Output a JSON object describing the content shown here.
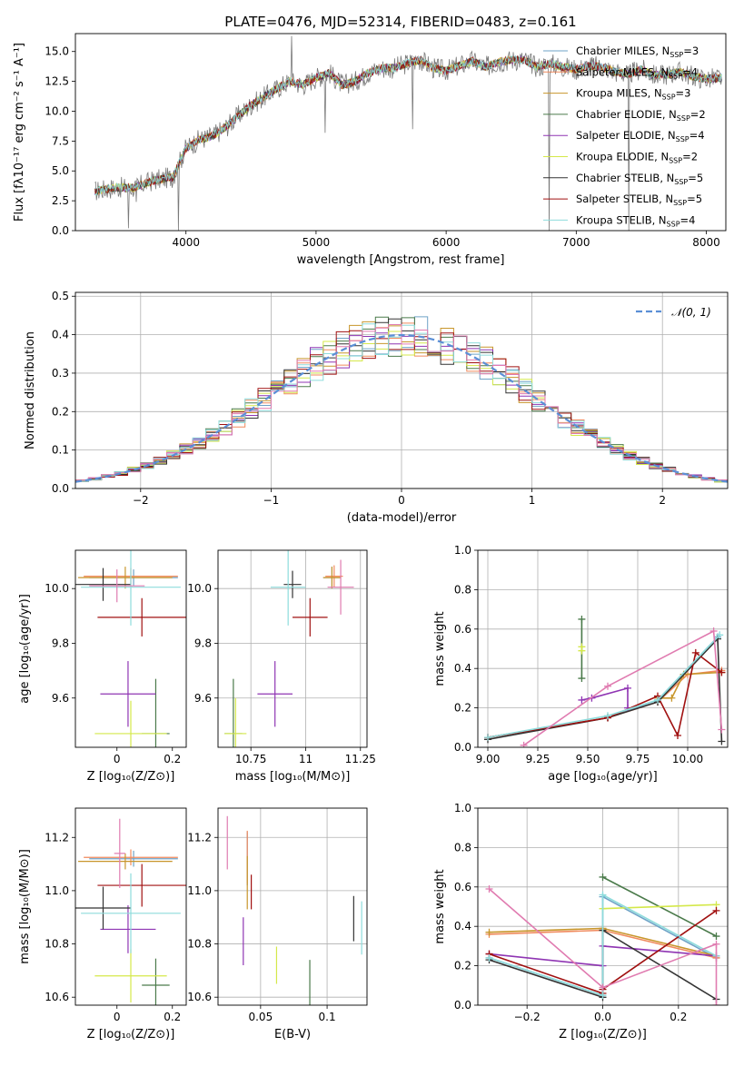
{
  "figure": {
    "title": "PLATE=0476, MJD=52314, FIBERID=0483, z=0.161"
  },
  "colors": {
    "Chabrier MILES": "#6fa3c7",
    "Salpeter MILES": "#f08a5d",
    "Kroupa MILES": "#c8962c",
    "Chabrier ELODIE": "#4a7a4a",
    "Salpeter ELODIE": "#8f35b3",
    "Kroupa ELODIE": "#d4e84a",
    "Chabrier STELIB": "#333333",
    "Salpeter STELIB": "#a01010",
    "Kroupa STELIB": "#8edcdc",
    "extra_pink": "#e07bb0",
    "normal_curve": "#5b8fd6"
  },
  "chart_data": [
    {
      "type": "line",
      "id": "spectrum",
      "title": "PLATE=0476, MJD=52314, FIBERID=0483, z=0.161",
      "xlabel": "wavelength [Angstrom, rest frame]",
      "ylabel": "Flux [fλ10⁻¹⁷ erg cm⁻² s⁻¹ A⁻¹]",
      "xlim": [
        3150,
        8150
      ],
      "ylim": [
        0,
        16.5
      ],
      "xticks": [
        4000,
        5000,
        6000,
        7000,
        8000
      ],
      "yticks": [
        0.0,
        2.5,
        5.0,
        7.5,
        10.0,
        12.5,
        15.0
      ],
      "grid": false,
      "legend_position": "top-right",
      "legend": [
        {
          "label": "Chabrier MILES, N",
          "sub": "SSP",
          "tail": "=3",
          "color": "#6fa3c7"
        },
        {
          "label": "Salpeter MILES, N",
          "sub": "SSP",
          "tail": "=4",
          "color": "#f08a5d"
        },
        {
          "label": "Kroupa MILES, N",
          "sub": "SSP",
          "tail": "=3",
          "color": "#c8962c"
        },
        {
          "label": "Chabrier ELODIE, N",
          "sub": "SSP",
          "tail": "=2",
          "color": "#4a7a4a"
        },
        {
          "label": "Salpeter ELODIE, N",
          "sub": "SSP",
          "tail": "=4",
          "color": "#8f35b3"
        },
        {
          "label": "Kroupa ELODIE, N",
          "sub": "SSP",
          "tail": "=2",
          "color": "#d4e84a"
        },
        {
          "label": "Chabrier STELIB, N",
          "sub": "SSP",
          "tail": "=5",
          "color": "#333333"
        },
        {
          "label": "Salpeter STELIB, N",
          "sub": "SSP",
          "tail": "=5",
          "color": "#a01010"
        },
        {
          "label": "Kroupa STELIB, N",
          "sub": "SSP",
          "tail": "=4",
          "color": "#8edcdc"
        }
      ],
      "continuum": [
        [
          3300,
          3.3
        ],
        [
          3450,
          3.6
        ],
        [
          3600,
          3.6
        ],
        [
          3750,
          4.2
        ],
        [
          3900,
          4.5
        ],
        [
          4000,
          6.9
        ],
        [
          4100,
          7.6
        ],
        [
          4200,
          7.9
        ],
        [
          4300,
          8.6
        ],
        [
          4400,
          9.6
        ],
        [
          4500,
          10.5
        ],
        [
          4600,
          11.2
        ],
        [
          4700,
          11.9
        ],
        [
          4800,
          12.5
        ],
        [
          4900,
          12.2
        ],
        [
          5000,
          12.8
        ],
        [
          5100,
          13.2
        ],
        [
          5200,
          12.2
        ],
        [
          5300,
          12.5
        ],
        [
          5400,
          13.2
        ],
        [
          5500,
          13.6
        ],
        [
          5600,
          13.6
        ],
        [
          5700,
          14.0
        ],
        [
          5800,
          14.3
        ],
        [
          5900,
          13.6
        ],
        [
          6000,
          13.4
        ],
        [
          6100,
          13.8
        ],
        [
          6200,
          14.2
        ],
        [
          6300,
          13.7
        ],
        [
          6400,
          14.1
        ],
        [
          6500,
          14.3
        ],
        [
          6600,
          14.3
        ],
        [
          6700,
          13.7
        ],
        [
          6800,
          14.0
        ],
        [
          6900,
          13.7
        ],
        [
          7000,
          13.5
        ],
        [
          7100,
          13.8
        ],
        [
          7200,
          13.7
        ],
        [
          7300,
          13.3
        ],
        [
          7400,
          13.1
        ],
        [
          7500,
          13.5
        ],
        [
          7600,
          13.0
        ],
        [
          7700,
          13.1
        ],
        [
          7800,
          13.3
        ],
        [
          7900,
          12.9
        ],
        [
          8000,
          12.7
        ],
        [
          8100,
          12.8
        ]
      ],
      "spikes": [
        [
          3560,
          0.2
        ],
        [
          3620,
          2.4
        ],
        [
          3940,
          0.0
        ],
        [
          4810,
          16.3
        ],
        [
          5070,
          8.2
        ],
        [
          5740,
          8.5
        ],
        [
          6790,
          0.0
        ],
        [
          7405,
          0.0
        ]
      ]
    },
    {
      "type": "line",
      "id": "residual_histogram",
      "xlabel": "(data-model)/error",
      "ylabel": "Normed distribution",
      "xlim": [
        -2.5,
        2.5
      ],
      "ylim": [
        0,
        0.51
      ],
      "xticks": [
        -2,
        -1,
        0,
        1,
        2
      ],
      "xtick_labels": [
        "−2",
        "−1",
        "0",
        "1",
        "2"
      ],
      "yticks": [
        0.0,
        0.1,
        0.2,
        0.3,
        0.4,
        0.5
      ],
      "grid": true,
      "legend_position": "top-right",
      "legend": [
        {
          "label": "𝒩(0, 1)",
          "color": "#5b8fd6",
          "style": "dashed"
        }
      ],
      "series_colors": [
        "#6fa3c7",
        "#f08a5d",
        "#c8962c",
        "#4a7a4a",
        "#8f35b3",
        "#d4e84a",
        "#333333",
        "#a01010",
        "#8edcdc",
        "#e07bb0"
      ],
      "bins": {
        "start": -2.5,
        "width": 0.1,
        "count": 50
      }
    },
    {
      "type": "scatter",
      "id": "age_vs_Z",
      "xlabel": "Z [log₁₀(Z/Z⊙)]",
      "ylabel": "age  [log₁₀(age/yr)]",
      "xlim": [
        -0.15,
        0.25
      ],
      "ylim": [
        9.42,
        10.14
      ],
      "xticks": [
        0.0,
        0.2
      ],
      "yticks": [
        9.6,
        9.8,
        10.0
      ],
      "grid": false,
      "points": [
        {
          "x": 0.06,
          "xerr": 0.16,
          "y": 10.04,
          "yerr": 0.03,
          "color": "#6fa3c7"
        },
        {
          "x": 0.05,
          "xerr": 0.17,
          "y": 10.045,
          "yerr": 0.03,
          "color": "#f08a5d"
        },
        {
          "x": 0.03,
          "xerr": 0.17,
          "y": 10.04,
          "yerr": 0.04,
          "color": "#c8962c"
        },
        {
          "x": 0.14,
          "xerr": 0.05,
          "y": 9.47,
          "yerr": 0.2,
          "color": "#4a7a4a"
        },
        {
          "x": 0.04,
          "xerr": 0.1,
          "y": 9.615,
          "yerr": 0.12,
          "color": "#8f35b3"
        },
        {
          "x": 0.05,
          "xerr": 0.13,
          "y": 9.47,
          "yerr": 0.12,
          "color": "#d4e84a"
        },
        {
          "x": -0.05,
          "xerr": 0.1,
          "y": 10.015,
          "yerr": 0.06,
          "color": "#333333"
        },
        {
          "x": 0.09,
          "xerr": 0.16,
          "y": 9.895,
          "yerr": 0.07,
          "color": "#a01010"
        },
        {
          "x": 0.05,
          "xerr": 0.18,
          "y": 10.005,
          "yerr": 0.14,
          "color": "#8edcdc"
        },
        {
          "x": 0.0,
          "xerr": 0.1,
          "y": 10.01,
          "yerr": 0.06,
          "color": "#e07bb0"
        }
      ]
    },
    {
      "type": "scatter",
      "id": "age_vs_mass",
      "xlabel": "mass [log₁₀(M/M⊙)]",
      "xlim": [
        10.6,
        11.28
      ],
      "ylim": [
        9.42,
        10.14
      ],
      "xticks": [
        10.75,
        11.0,
        11.25
      ],
      "yticks": [
        9.6,
        9.8,
        10.0
      ],
      "grid": true,
      "points": [
        {
          "x": 11.12,
          "xerr": 0.04,
          "y": 10.04,
          "yerr": 0.04,
          "color": "#6fa3c7"
        },
        {
          "x": 11.13,
          "xerr": 0.04,
          "y": 10.045,
          "yerr": 0.04,
          "color": "#f08a5d"
        },
        {
          "x": 11.12,
          "xerr": 0.04,
          "y": 10.04,
          "yerr": 0.04,
          "color": "#c8962c"
        },
        {
          "x": 10.67,
          "xerr": 0.04,
          "y": 9.47,
          "yerr": 0.2,
          "color": "#4a7a4a"
        },
        {
          "x": 10.86,
          "xerr": 0.08,
          "y": 9.615,
          "yerr": 0.12,
          "color": "#8f35b3"
        },
        {
          "x": 10.68,
          "xerr": 0.05,
          "y": 9.47,
          "yerr": 0.13,
          "color": "#d4e84a"
        },
        {
          "x": 10.94,
          "xerr": 0.04,
          "y": 10.015,
          "yerr": 0.05,
          "color": "#333333"
        },
        {
          "x": 11.02,
          "xerr": 0.08,
          "y": 9.895,
          "yerr": 0.07,
          "color": "#a01010"
        },
        {
          "x": 10.92,
          "xerr": 0.08,
          "y": 10.005,
          "yerr": 0.14,
          "color": "#8edcdc"
        },
        {
          "x": 11.16,
          "xerr": 0.06,
          "y": 10.005,
          "yerr": 0.1,
          "color": "#e07bb0"
        }
      ]
    },
    {
      "type": "line",
      "id": "mass_weight_vs_age",
      "xlabel": "age  [log₁₀(age/yr)]",
      "ylabel": "mass weight",
      "xlim": [
        8.95,
        10.2
      ],
      "ylim": [
        0,
        1.0
      ],
      "xticks": [
        9.0,
        9.25,
        9.5,
        9.75,
        10.0
      ],
      "xtick_labels": [
        "9.00",
        "9.25",
        "9.50",
        "9.75",
        "10.00"
      ],
      "yticks": [
        0.0,
        0.2,
        0.4,
        0.6,
        0.8,
        1.0
      ],
      "grid": true,
      "series": [
        {
          "color": "#6fa3c7",
          "x": [
            9.0,
            9.6,
            9.85,
            10.15
          ],
          "y": [
            0.05,
            0.15,
            0.24,
            0.56
          ]
        },
        {
          "color": "#f08a5d",
          "x": [
            9.0,
            9.6,
            9.85,
            10.0,
            10.17
          ],
          "y": [
            0.05,
            0.15,
            0.23,
            0.37,
            0.39
          ]
        },
        {
          "color": "#c8962c",
          "x": [
            9.85,
            9.92,
            9.98,
            10.17
          ],
          "y": [
            0.25,
            0.25,
            0.37,
            0.38
          ]
        },
        {
          "color": "#4a7a4a",
          "x": [
            9.47,
            9.47
          ],
          "y": [
            0.35,
            0.65
          ]
        },
        {
          "color": "#8f35b3",
          "x": [
            9.47,
            9.52,
            9.7,
            9.7
          ],
          "y": [
            0.24,
            0.25,
            0.3,
            0.2
          ]
        },
        {
          "color": "#d4e84a",
          "x": [
            9.47,
            9.47
          ],
          "y": [
            0.49,
            0.51
          ]
        },
        {
          "color": "#333333",
          "x": [
            9.0,
            9.6,
            9.85,
            10.15,
            10.17
          ],
          "y": [
            0.04,
            0.15,
            0.23,
            0.55,
            0.03
          ]
        },
        {
          "color": "#a01010",
          "x": [
            9.0,
            9.6,
            9.85,
            9.95,
            10.04,
            10.17
          ],
          "y": [
            0.05,
            0.15,
            0.26,
            0.06,
            0.48,
            0.38
          ]
        },
        {
          "color": "#8edcdc",
          "x": [
            9.0,
            9.6,
            9.85,
            10.16
          ],
          "y": [
            0.05,
            0.16,
            0.24,
            0.57
          ]
        },
        {
          "color": "#e07bb0",
          "x": [
            9.18,
            9.6,
            10.13,
            10.17
          ],
          "y": [
            0.01,
            0.31,
            0.59,
            0.09
          ]
        }
      ]
    },
    {
      "type": "scatter",
      "id": "mass_vs_Z",
      "xlabel": "Z [log₁₀(Z/Z⊙)]",
      "ylabel": "mass [log₁₀(M/M⊙)]",
      "xlim": [
        -0.15,
        0.25
      ],
      "ylim": [
        10.57,
        11.31
      ],
      "xticks": [
        0.0,
        0.2
      ],
      "yticks": [
        10.6,
        10.8,
        11.0,
        11.2
      ],
      "grid": false,
      "points": [
        {
          "x": 0.06,
          "xerr": 0.16,
          "y": 11.12,
          "yerr": 0.03,
          "color": "#6fa3c7"
        },
        {
          "x": 0.05,
          "xerr": 0.17,
          "y": 11.125,
          "yerr": 0.03,
          "color": "#f08a5d"
        },
        {
          "x": 0.03,
          "xerr": 0.17,
          "y": 11.11,
          "yerr": 0.03,
          "color": "#c8962c"
        },
        {
          "x": 0.14,
          "xerr": 0.05,
          "y": 10.645,
          "yerr": 0.1,
          "color": "#4a7a4a"
        },
        {
          "x": 0.04,
          "xerr": 0.1,
          "y": 10.855,
          "yerr": 0.09,
          "color": "#8f35b3"
        },
        {
          "x": 0.05,
          "xerr": 0.13,
          "y": 10.68,
          "yerr": 0.1,
          "color": "#d4e84a"
        },
        {
          "x": -0.05,
          "xerr": 0.1,
          "y": 10.935,
          "yerr": 0.08,
          "color": "#333333"
        },
        {
          "x": 0.09,
          "xerr": 0.16,
          "y": 11.02,
          "yerr": 0.08,
          "color": "#a01010"
        },
        {
          "x": 0.05,
          "xerr": 0.18,
          "y": 10.915,
          "yerr": 0.15,
          "color": "#8edcdc"
        },
        {
          "x": 0.01,
          "xerr": 0.02,
          "y": 11.14,
          "yerr": 0.13,
          "color": "#e07bb0"
        }
      ]
    },
    {
      "type": "scatter",
      "id": "mass_vs_EBV",
      "xlabel": "E(B-V)",
      "xlim": [
        0.018,
        0.13
      ],
      "ylim": [
        10.57,
        11.31
      ],
      "xticks": [
        0.05,
        0.1
      ],
      "yticks": [
        10.6,
        10.8,
        11.0,
        11.2
      ],
      "grid": true,
      "points": [
        {
          "x": 0.04,
          "y": 11.12,
          "yerr": 0.1,
          "color": "#6fa3c7"
        },
        {
          "x": 0.04,
          "y": 11.125,
          "yerr": 0.1,
          "color": "#f08a5d"
        },
        {
          "x": 0.04,
          "y": 11.03,
          "yerr": 0.1,
          "color": "#c8962c"
        },
        {
          "x": 0.087,
          "y": 10.64,
          "yerr": 0.1,
          "color": "#4a7a4a"
        },
        {
          "x": 0.037,
          "y": 10.81,
          "yerr": 0.09,
          "color": "#8f35b3"
        },
        {
          "x": 0.062,
          "y": 10.72,
          "yerr": 0.07,
          "color": "#d4e84a"
        },
        {
          "x": 0.12,
          "y": 10.895,
          "yerr": 0.085,
          "color": "#333333"
        },
        {
          "x": 0.043,
          "y": 10.995,
          "yerr": 0.065,
          "color": "#a01010"
        },
        {
          "x": 0.126,
          "y": 10.86,
          "yerr": 0.1,
          "color": "#8edcdc"
        },
        {
          "x": 0.025,
          "y": 11.18,
          "yerr": 0.1,
          "color": "#e07bb0"
        }
      ]
    },
    {
      "type": "line",
      "id": "mass_weight_vs_Z",
      "xlabel": "Z [log₁₀(Z/Z⊙)]",
      "ylabel": "mass weight",
      "xlim": [
        -0.33,
        0.33
      ],
      "ylim": [
        0,
        1.0
      ],
      "xticks": [
        -0.2,
        0.0,
        0.2
      ],
      "xtick_labels": [
        "−0.2",
        "0.0",
        "0.2"
      ],
      "yticks": [
        0.0,
        0.2,
        0.4,
        0.6,
        0.8,
        1.0
      ],
      "grid": true,
      "series": [
        {
          "color": "#6fa3c7",
          "x": [
            -0.3,
            0.0,
            0.0,
            0.3
          ],
          "y": [
            0.24,
            0.05,
            0.55,
            0.24
          ]
        },
        {
          "color": "#f08a5d",
          "x": [
            -0.3,
            0.0,
            0.3
          ],
          "y": [
            0.36,
            0.38,
            0.24
          ]
        },
        {
          "color": "#c8962c",
          "x": [
            -0.3,
            0.0,
            0.3
          ],
          "y": [
            0.37,
            0.39,
            0.25
          ]
        },
        {
          "color": "#4a7a4a",
          "x": [
            0.0,
            0.3
          ],
          "y": [
            0.65,
            0.35
          ]
        },
        {
          "color": "#8f35b3",
          "x": [
            -0.3,
            0.0,
            0.0,
            0.3
          ],
          "y": [
            0.26,
            0.2,
            0.3,
            0.25
          ]
        },
        {
          "color": "#d4e84a",
          "x": [
            0.0,
            0.3
          ],
          "y": [
            0.49,
            0.51
          ]
        },
        {
          "color": "#333333",
          "x": [
            -0.3,
            0.0,
            0.0,
            0.3
          ],
          "y": [
            0.23,
            0.04,
            0.38,
            0.03
          ]
        },
        {
          "color": "#a01010",
          "x": [
            -0.3,
            0.0,
            0.0,
            0.3
          ],
          "y": [
            0.26,
            0.06,
            0.08,
            0.48
          ]
        },
        {
          "color": "#8edcdc",
          "x": [
            -0.3,
            0.0,
            0.0,
            0.3
          ],
          "y": [
            0.24,
            0.05,
            0.56,
            0.25
          ]
        },
        {
          "color": "#e07bb0",
          "x": [
            -0.3,
            0.0,
            0.3,
            0.3
          ],
          "y": [
            0.59,
            0.09,
            0.31,
            0.0
          ]
        }
      ]
    }
  ]
}
